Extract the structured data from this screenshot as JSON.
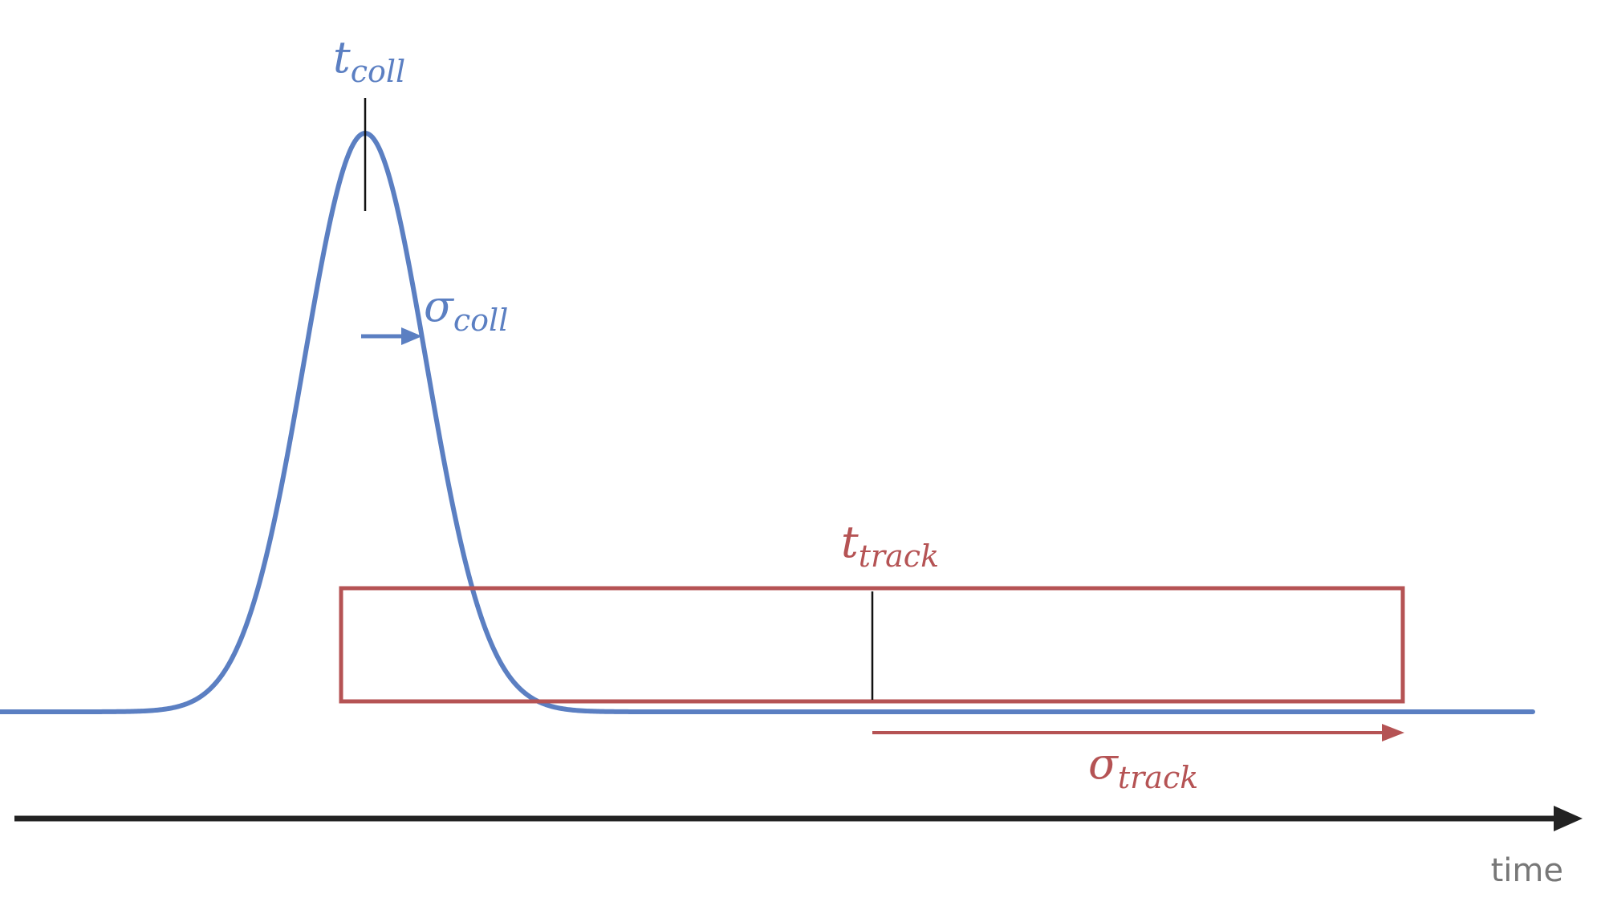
{
  "colors": {
    "collision": "#5b7fc2",
    "track": "#b55354",
    "axis": "#222222",
    "marker": "#111111",
    "axis_label": "#777777"
  },
  "labels": {
    "t_coll": {
      "main": "t",
      "sub": "coll"
    },
    "sigma_coll": {
      "main": "σ",
      "sub": "coll"
    },
    "t_track": {
      "main": "t",
      "sub": "track"
    },
    "sigma_track": {
      "main": "σ",
      "sub": "track"
    },
    "time_axis": "time"
  },
  "icons": {
    "time_axis": "arrow-right-icon",
    "sigma_coll": "arrow-right-icon",
    "sigma_track": "arrow-right-icon"
  }
}
